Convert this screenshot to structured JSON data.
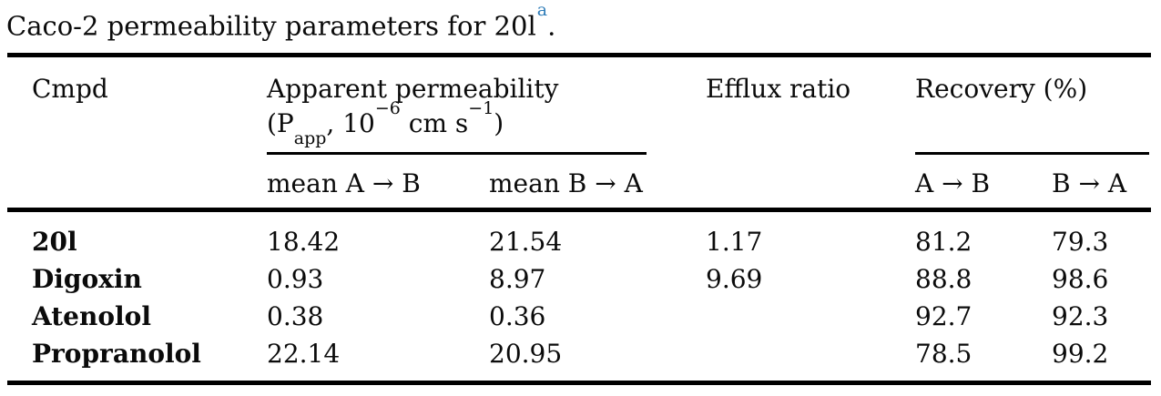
{
  "caption": {
    "text": "Caco-2 permeability parameters for 20l",
    "footnote_marker": "a",
    "suffix": "."
  },
  "header": {
    "cmpd": "Cmpd",
    "apparent_permeability": {
      "title": "Apparent permeability",
      "unit": {
        "open": "(P",
        "sub": "app",
        "comma_ten": ", 10",
        "exp_ten": "−6",
        "cm_s": " cm s",
        "exp_s": "−1",
        "close": ")"
      }
    },
    "efflux_ratio": "Efflux ratio",
    "recovery": "Recovery (%)",
    "sub": {
      "mean_a_to_b": "mean A → B",
      "mean_b_to_a": "mean B → A",
      "a_to_b": "A → B",
      "b_to_a": "B → A"
    }
  },
  "rows": [
    {
      "cmpd": "20l",
      "mean_a_to_b": "18.42",
      "mean_b_to_a": "21.54",
      "efflux_ratio": "1.17",
      "recovery_a_to_b": "81.2",
      "recovery_b_to_a": "79.3"
    },
    {
      "cmpd": "Digoxin",
      "mean_a_to_b": "0.93",
      "mean_b_to_a": "8.97",
      "efflux_ratio": "9.69",
      "recovery_a_to_b": "88.8",
      "recovery_b_to_a": "98.6"
    },
    {
      "cmpd": "Atenolol",
      "mean_a_to_b": "0.38",
      "mean_b_to_a": "0.36",
      "efflux_ratio": "",
      "recovery_a_to_b": "92.7",
      "recovery_b_to_a": "92.3"
    },
    {
      "cmpd": "Propranolol",
      "mean_a_to_b": "22.14",
      "mean_b_to_a": "20.95",
      "efflux_ratio": "",
      "recovery_a_to_b": "78.5",
      "recovery_b_to_a": "99.2"
    }
  ],
  "colors": {
    "text": "#0b0b0b",
    "rule": "#000000",
    "footnote_link": "#2e7cb8",
    "background": "#ffffff"
  }
}
